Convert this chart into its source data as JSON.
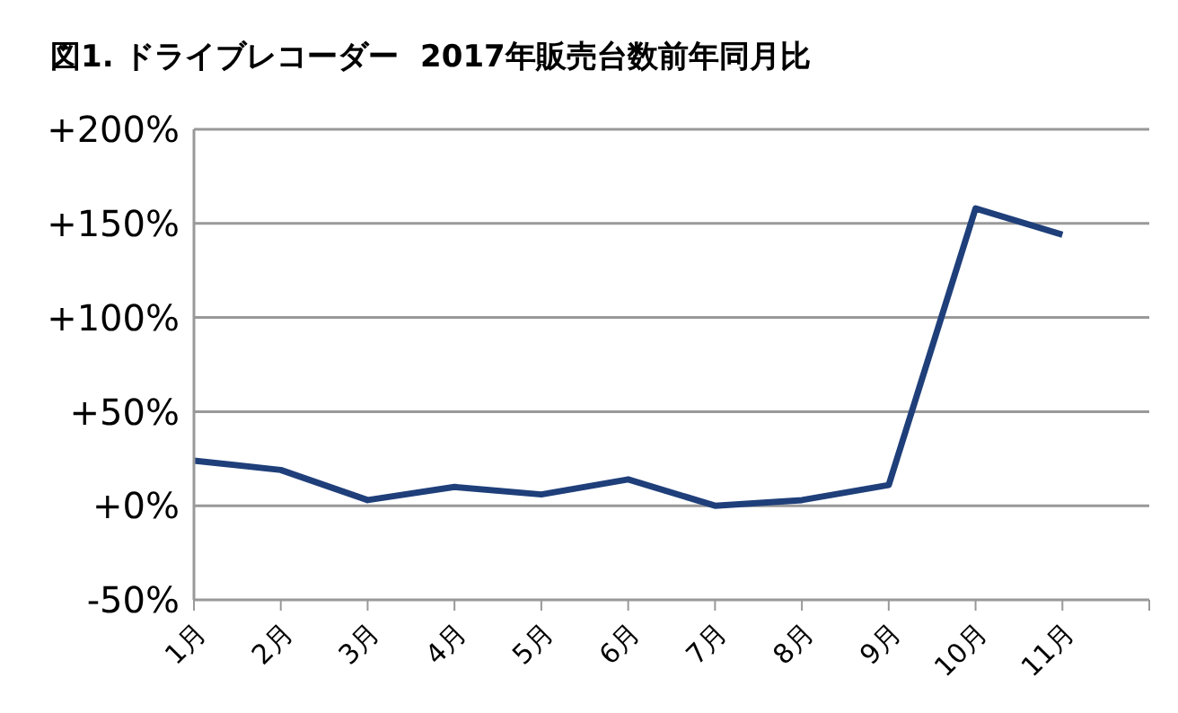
{
  "chart_data": {
    "type": "line",
    "title": "図1. ドライブレコーダー  2017年販売台数前年同月比",
    "categories": [
      "1月",
      "2月",
      "3月",
      "4月",
      "5月",
      "6月",
      "7月",
      "8月",
      "9月",
      "10月",
      "11月",
      null
    ],
    "series": [
      {
        "color": "#1f3f7a",
        "values": [
          24,
          19,
          3,
          10,
          6,
          14,
          0,
          3,
          11,
          158,
          144,
          null
        ]
      }
    ],
    "ylim": [
      -50,
      200
    ],
    "yticks": [
      {
        "value": -50,
        "label": "-50%"
      },
      {
        "value": 0,
        "label": "+0%"
      },
      {
        "value": 50,
        "label": "+50%"
      },
      {
        "value": 100,
        "label": "+100%"
      },
      {
        "value": 150,
        "label": "+150%"
      },
      {
        "value": 200,
        "label": "+200%"
      }
    ],
    "grid": "y",
    "legend": false,
    "marker": "none",
    "line_style": "solid"
  }
}
